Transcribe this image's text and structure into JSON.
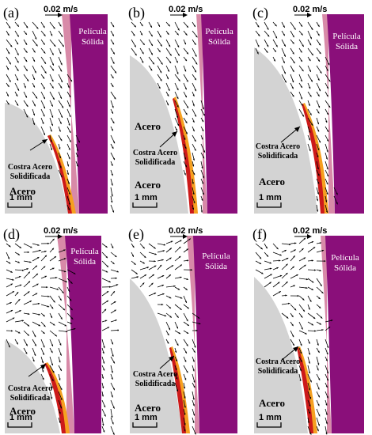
{
  "panels": [
    {
      "label": "(a)",
      "velocity_scale": "0.02 m/s",
      "film": [
        "Película",
        "Sólida"
      ],
      "shell": [
        "Costra Acero",
        "Solidificada"
      ],
      "steel": "Acero",
      "scale_bar": "1 mm"
    },
    {
      "label": "(b)",
      "velocity_scale": "0.02 m/s",
      "film": [
        "Película",
        "Sólida"
      ],
      "shell": [
        "Costra Acero",
        "Solidificada"
      ],
      "steel_top": "Acero",
      "steel": "Acero",
      "scale_bar": "1 mm"
    },
    {
      "label": "(c)",
      "velocity_scale": "0.02 m/s",
      "film": [
        "Película",
        "Sólida"
      ],
      "shell": [
        "Costra Acero",
        "Solidificada"
      ],
      "steel": "Acero",
      "scale_bar": "1 mm"
    },
    {
      "label": "(d)",
      "velocity_scale": "0.02 m/s",
      "film": [
        "Película",
        "Sólida"
      ],
      "shell": [
        "Costra Acero",
        "Solidificada"
      ],
      "steel": "Acero",
      "scale_bar": "1 mm"
    },
    {
      "label": "(e)",
      "velocity_scale": "0.02 m/s",
      "film": [
        "Película",
        "Sólida"
      ],
      "shell": [
        "Costra Acero",
        "Solidificada"
      ],
      "steel": "Acero",
      "scale_bar": "1 mm"
    },
    {
      "label": "(f)",
      "velocity_scale": "0.02 m/s",
      "film": [
        "Película",
        "Sólida"
      ],
      "shell": [
        "Costra Acero",
        "Solidificada"
      ],
      "steel": "Acero",
      "scale_bar": "1 mm"
    }
  ],
  "colors": {
    "film": "#8a0f7a",
    "film_edge": "#d88aa8",
    "steel": "#d3d3d3",
    "shell": "#cc1a1a",
    "shell_glow": "#f5a020",
    "vector": "#000000"
  }
}
